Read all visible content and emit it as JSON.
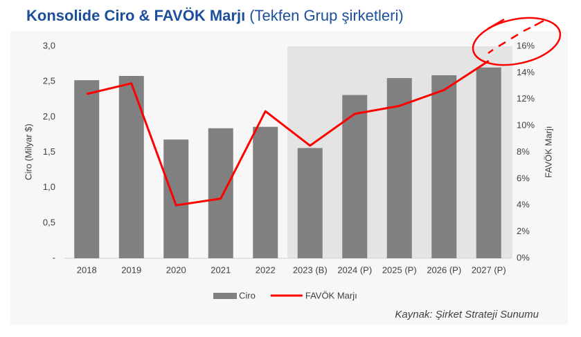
{
  "chart_data": {
    "type": "bar",
    "title": "Konsolide Ciro & FAVÖK Marjı",
    "subtitle": "(Tekfen Grup şirketleri)",
    "y_label": "Ciro (Milyar $)",
    "y2_label": "FAVÖK Marjı",
    "source": "Kaynak: Şirket Strateji Sunumu",
    "categories": [
      "2018",
      "2019",
      "2020",
      "2021",
      "2022",
      "2023 (B)",
      "2024 (P)",
      "2025 (P)",
      "2026 (P)",
      "2027 (P)"
    ],
    "series": [
      {
        "name": "Ciro",
        "type": "bar",
        "color": "#808080",
        "axis": "y",
        "values": [
          2.52,
          2.58,
          1.68,
          1.84,
          1.86,
          1.56,
          2.31,
          2.55,
          2.59,
          2.7
        ]
      },
      {
        "name": "FAVÖK Marjı",
        "type": "line",
        "color": "#ff0000",
        "axis": "y2",
        "values": [
          12.4,
          13.2,
          4.0,
          4.5,
          11.1,
          8.5,
          10.9,
          11.5,
          12.7,
          14.9
        ]
      }
    ],
    "ylim": [
      0,
      3
    ],
    "yticks": [
      {
        "value": 0,
        "label": "-"
      },
      {
        "value": 0.5,
        "label": "0,5"
      },
      {
        "value": 1,
        "label": "1,0"
      },
      {
        "value": 1.5,
        "label": "1,5"
      },
      {
        "value": 2,
        "label": "2,0"
      },
      {
        "value": 2.5,
        "label": "2,5"
      },
      {
        "value": 3,
        "label": "3,0"
      }
    ],
    "y2lim": [
      0,
      16
    ],
    "y2ticks": [
      {
        "value": 0,
        "label": "0%"
      },
      {
        "value": 2,
        "label": "2%"
      },
      {
        "value": 4,
        "label": "4%"
      },
      {
        "value": 6,
        "label": "6%"
      },
      {
        "value": 8,
        "label": "8%"
      },
      {
        "value": 10,
        "label": "10%"
      },
      {
        "value": 12,
        "label": "12%"
      },
      {
        "value": 14,
        "label": "14%"
      },
      {
        "value": 16,
        "label": "16%"
      }
    ],
    "grid": false,
    "legend": "bottom"
  }
}
